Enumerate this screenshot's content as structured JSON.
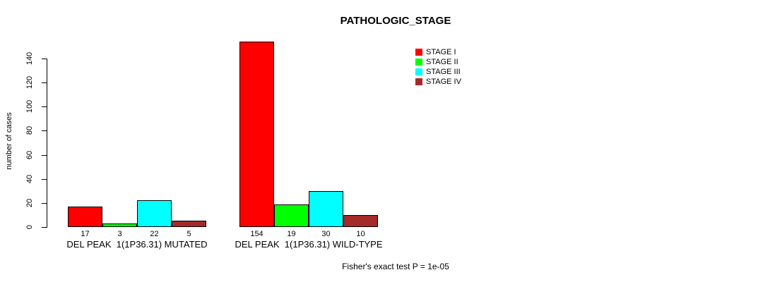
{
  "chart_data": {
    "type": "bar",
    "title": "PATHOLOGIC_STAGE",
    "ylabel": "number of cases",
    "xlabel": "",
    "ylim": [
      0,
      140
    ],
    "yticks": [
      0,
      20,
      40,
      60,
      80,
      100,
      120,
      140
    ],
    "grid": false,
    "legend_position": "top-right",
    "categories": [
      "DEL PEAK  1(1P36.31) MUTATED",
      "DEL PEAK  1(1P36.31) WILD-TYPE"
    ],
    "series": [
      {
        "name": "STAGE I",
        "color": "#ff0000",
        "values": [
          17,
          154
        ]
      },
      {
        "name": "STAGE II",
        "color": "#00ff00",
        "values": [
          3,
          19
        ]
      },
      {
        "name": "STAGE III",
        "color": "#00ffff",
        "values": [
          22,
          30
        ]
      },
      {
        "name": "STAGE IV",
        "color": "#a52a2a",
        "values": [
          5,
          10
        ]
      }
    ],
    "bar_value_labels": [
      [
        17,
        3,
        22,
        5
      ],
      [
        154,
        19,
        30,
        10
      ]
    ],
    "annotation": "Fisher's exact test P = 1e-05"
  },
  "colors": {
    "background": "#ffffff",
    "axis": "#000000",
    "text": "#000000"
  }
}
